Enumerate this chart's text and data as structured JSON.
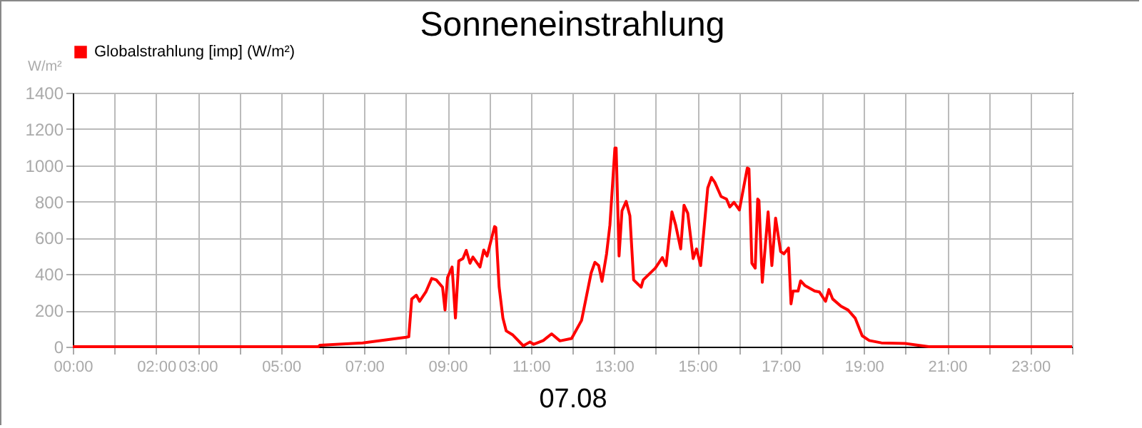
{
  "chart_data": {
    "type": "line",
    "title": "Sonneneinstrahlung",
    "xlabel": "07.08",
    "ylabel": "W/m²",
    "x": [
      0,
      5.9,
      5.93,
      6.96,
      8.01,
      8.07,
      8.14,
      8.25,
      8.33,
      8.48,
      8.62,
      8.73,
      8.88,
      8.94,
      9.0,
      9.11,
      9.19,
      9.27,
      9.37,
      9.45,
      9.54,
      9.61,
      9.78,
      9.87,
      9.95,
      10.13,
      10.16,
      10.24,
      10.33,
      10.41,
      10.56,
      10.82,
      10.98,
      11.07,
      11.3,
      11.5,
      11.7,
      11.98,
      12.22,
      12.45,
      12.54,
      12.63,
      12.71,
      12.82,
      12.9,
      13.02,
      13.05,
      13.12,
      13.19,
      13.29,
      13.38,
      13.47,
      13.65,
      13.7,
      13.99,
      14.16,
      14.25,
      14.39,
      14.48,
      14.6,
      14.68,
      14.77,
      14.9,
      14.98,
      15.08,
      15.25,
      15.34,
      15.42,
      15.57,
      15.7,
      15.78,
      15.88,
      16.01,
      16.2,
      16.24,
      16.31,
      16.39,
      16.45,
      16.48,
      16.56,
      16.7,
      16.79,
      16.88,
      17.0,
      17.08,
      17.19,
      17.25,
      17.3,
      17.42,
      17.48,
      17.59,
      17.82,
      17.93,
      18.08,
      18.16,
      18.25,
      18.45,
      18.62,
      18.79,
      18.96,
      19.13,
      19.42,
      19.99,
      20.56,
      24
    ],
    "series": [
      {
        "name": "Globalstrahlung [imp] (W/m²)",
        "color": "#ff0000",
        "values": [
          0,
          0,
          8,
          21,
          52,
          55,
          263,
          284,
          250,
          302,
          376,
          368,
          328,
          202,
          381,
          439,
          158,
          473,
          486,
          531,
          460,
          494,
          439,
          533,
          499,
          662,
          657,
          328,
          158,
          87,
          66,
          5,
          26,
          13,
          34,
          71,
          32,
          45,
          145,
          407,
          465,
          447,
          360,
          512,
          670,
          1095,
          1095,
          500,
          749,
          801,
          722,
          368,
          328,
          368,
          433,
          491,
          447,
          743,
          670,
          539,
          780,
          736,
          486,
          539,
          447,
          875,
          933,
          906,
          828,
          814,
          770,
          796,
          754,
          985,
          980,
          460,
          433,
          814,
          806,
          355,
          743,
          447,
          709,
          525,
          512,
          544,
          236,
          307,
          307,
          363,
          336,
          307,
          302,
          250,
          315,
          263,
          223,
          202,
          158,
          60,
          34,
          21,
          18,
          0,
          0
        ]
      }
    ],
    "xlim": [
      0,
      24
    ],
    "xticks": [
      {
        "value": 0,
        "label": "00:00"
      },
      {
        "value": 1,
        "label": null
      },
      {
        "value": 2,
        "label": "02:00"
      },
      {
        "value": 3,
        "label": "03:00"
      },
      {
        "value": 4,
        "label": null
      },
      {
        "value": 5,
        "label": "05:00"
      },
      {
        "value": 6,
        "label": null
      },
      {
        "value": 7,
        "label": "07:00"
      },
      {
        "value": 8,
        "label": null
      },
      {
        "value": 9,
        "label": "09:00"
      },
      {
        "value": 10,
        "label": null
      },
      {
        "value": 11,
        "label": "11:00"
      },
      {
        "value": 12,
        "label": null
      },
      {
        "value": 13,
        "label": "13:00"
      },
      {
        "value": 14,
        "label": null
      },
      {
        "value": 15,
        "label": "15:00"
      },
      {
        "value": 16,
        "label": null
      },
      {
        "value": 17,
        "label": "17:00"
      },
      {
        "value": 18,
        "label": null
      },
      {
        "value": 19,
        "label": "19:00"
      },
      {
        "value": 20,
        "label": null
      },
      {
        "value": 21,
        "label": "21:00"
      },
      {
        "value": 22,
        "label": null
      },
      {
        "value": 23,
        "label": "23:00"
      },
      {
        "value": 24,
        "label": null
      }
    ],
    "ylim": [
      0,
      1400
    ],
    "yticks": [
      0,
      200,
      400,
      600,
      800,
      1000,
      1200,
      1400
    ],
    "grid": true,
    "legend": "top left",
    "marker": "none",
    "line_style": "solid"
  }
}
